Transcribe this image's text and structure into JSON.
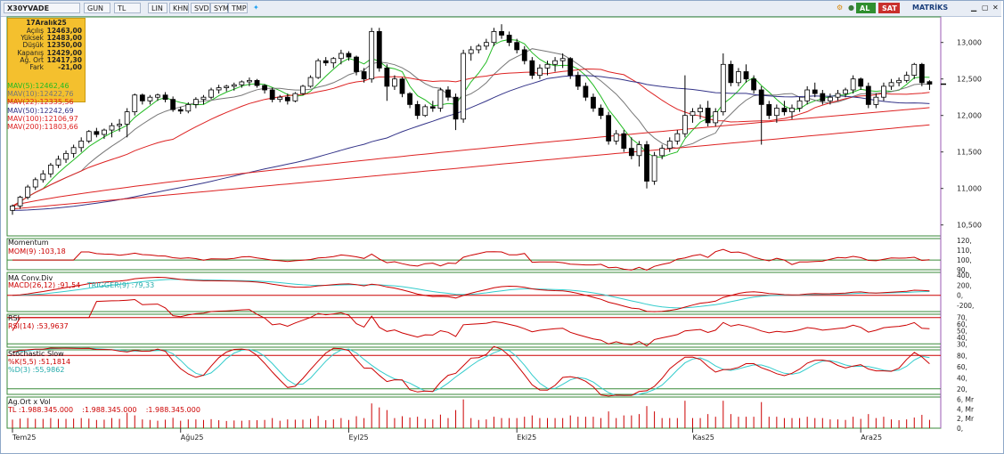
{
  "toolbar": {
    "symbol": "X30YVADE",
    "period": "GUN",
    "currency": "TL",
    "scale_lin": "LIN",
    "khn": "KHN",
    "svd": "SVD",
    "sym": "SYM",
    "tmp": "TMP",
    "buy": "AL",
    "sell": "SAT",
    "brand": "MATRİKS"
  },
  "info": {
    "date": "17Aralık25",
    "rows": [
      {
        "k": "Açılış",
        "v": "12463,00"
      },
      {
        "k": "Yüksek",
        "v": "12483,00"
      },
      {
        "k": "Düşük",
        "v": "12350,00"
      },
      {
        "k": "Kapanış",
        "v": "12429,00"
      },
      {
        "k": "Ağ. Ort",
        "v": "12417,30"
      },
      {
        "k": "Fark",
        "v": "-21,00"
      }
    ]
  },
  "ma_legend": [
    {
      "label": "MAV(5)",
      "value": ":12462,46",
      "color": "#22bb22"
    },
    {
      "label": "MAV(10)",
      "value": ":12422,76",
      "color": "#777777"
    },
    {
      "label": "MAV(22)",
      "value": ":12335,56",
      "color": "#dd2222"
    },
    {
      "label": "MAV(50)",
      "value": ":12242,69",
      "color": "#333388"
    },
    {
      "label": "MAV(100)",
      "value": ":12106,97",
      "color": "#dd2222"
    },
    {
      "label": "MAV(200)",
      "value": ":11803,66",
      "color": "#dd2222"
    }
  ],
  "panels": {
    "momentum": {
      "title": "Momentum",
      "line": "MOM(9)",
      "value": ":103,18"
    },
    "macd": {
      "title": "MA Conv.Div",
      "line": "MACD(26,12)",
      "value": ":91,54",
      "trigger": "TRIGGER(9)",
      "trigger_value": ":79,33"
    },
    "rsi": {
      "title": "RSI",
      "line": "RSI(14)",
      "value": ":53,9637"
    },
    "stoch": {
      "title": "Stochastic Slow",
      "k": "%K(5,5)",
      "k_value": ":51,1814",
      "d": "%D(3)",
      "d_value": ":55,9862"
    },
    "vol": {
      "title": "Ag.Ort x Vol",
      "unit": "TL",
      "value": ":1.988.345.000",
      "value2": ":1.988.345.000",
      "value3": ":1.988.345.000"
    }
  },
  "x_labels": [
    "Tem25",
    "Ağu25",
    "Eyl25",
    "Eki25",
    "Kas25",
    "Ara25"
  ],
  "colors": {
    "up": "#ffffff",
    "down": "#000000",
    "ma_fast": "#22bb22",
    "ma_mid": "#777777",
    "ma_red": "#dd2222",
    "ma_blue": "#333388",
    "signal": "#33cccc"
  },
  "chart_data": {
    "type": "candlestick",
    "y_axis": {
      "ticks": [
        10500,
        11000,
        11500,
        12000,
        12500,
        13000
      ],
      "range": [
        10350,
        13350
      ]
    },
    "candles": [
      [
        10700,
        10780,
        10640,
        10760
      ],
      [
        10760,
        10900,
        10720,
        10880
      ],
      [
        10880,
        11050,
        10850,
        11020
      ],
      [
        11020,
        11150,
        10980,
        11120
      ],
      [
        11120,
        11250,
        11080,
        11200
      ],
      [
        11200,
        11350,
        11150,
        11320
      ],
      [
        11320,
        11450,
        11280,
        11400
      ],
      [
        11400,
        11520,
        11350,
        11480
      ],
      [
        11480,
        11600,
        11420,
        11560
      ],
      [
        11560,
        11700,
        11500,
        11650
      ],
      [
        11650,
        11800,
        11620,
        11780
      ],
      [
        11780,
        11830,
        11700,
        11740
      ],
      [
        11740,
        11820,
        11680,
        11800
      ],
      [
        11800,
        11900,
        11700,
        11860
      ],
      [
        11860,
        11950,
        11780,
        11880
      ],
      [
        11880,
        12100,
        11700,
        12050
      ],
      [
        12050,
        12300,
        12000,
        12280
      ],
      [
        12280,
        12300,
        12150,
        12200
      ],
      [
        12200,
        12280,
        12150,
        12250
      ],
      [
        12250,
        12300,
        12200,
        12280
      ],
      [
        12280,
        12320,
        12180,
        12220
      ],
      [
        12220,
        12260,
        12050,
        12080
      ],
      [
        12080,
        12120,
        12020,
        12060
      ],
      [
        12060,
        12180,
        12030,
        12150
      ],
      [
        12150,
        12250,
        12100,
        12220
      ],
      [
        12220,
        12280,
        12150,
        12250
      ],
      [
        12250,
        12380,
        12220,
        12350
      ],
      [
        12350,
        12420,
        12300,
        12380
      ],
      [
        12380,
        12420,
        12330,
        12400
      ],
      [
        12400,
        12450,
        12340,
        12420
      ],
      [
        12420,
        12480,
        12380,
        12460
      ],
      [
        12460,
        12520,
        12400,
        12480
      ],
      [
        12480,
        12500,
        12380,
        12410
      ],
      [
        12410,
        12430,
        12300,
        12350
      ],
      [
        12350,
        12380,
        12180,
        12220
      ],
      [
        12220,
        12280,
        12180,
        12250
      ],
      [
        12250,
        12300,
        12150,
        12200
      ],
      [
        12200,
        12320,
        12180,
        12300
      ],
      [
        12300,
        12420,
        12280,
        12400
      ],
      [
        12400,
        12550,
        12380,
        12520
      ],
      [
        12520,
        12780,
        12500,
        12750
      ],
      [
        12750,
        12800,
        12680,
        12720
      ],
      [
        12720,
        12800,
        12650,
        12780
      ],
      [
        12780,
        12900,
        12700,
        12850
      ],
      [
        12850,
        12880,
        12750,
        12800
      ],
      [
        12800,
        12820,
        12550,
        12600
      ],
      [
        12600,
        12650,
        12450,
        12500
      ],
      [
        12500,
        13200,
        12450,
        13150
      ],
      [
        13150,
        13200,
        12600,
        12650
      ],
      [
        12650,
        12700,
        12200,
        12400
      ],
      [
        12400,
        12550,
        12350,
        12500
      ],
      [
        12500,
        12520,
        12250,
        12300
      ],
      [
        12300,
        12320,
        12100,
        12150
      ],
      [
        12150,
        12200,
        11950,
        12000
      ],
      [
        12000,
        12150,
        11980,
        12120
      ],
      [
        12120,
        12200,
        12050,
        12100
      ],
      [
        12100,
        12380,
        12050,
        12350
      ],
      [
        12350,
        12400,
        12200,
        12250
      ],
      [
        12250,
        12300,
        11800,
        11950
      ],
      [
        11950,
        12900,
        11900,
        12850
      ],
      [
        12850,
        12950,
        12750,
        12900
      ],
      [
        12900,
        12980,
        12850,
        12950
      ],
      [
        12950,
        13050,
        12900,
        13000
      ],
      [
        13000,
        13200,
        12950,
        13150
      ],
      [
        13150,
        13250,
        13050,
        13100
      ],
      [
        13100,
        13150,
        12950,
        13000
      ],
      [
        13000,
        13050,
        12850,
        12900
      ],
      [
        12900,
        12950,
        12700,
        12750
      ],
      [
        12750,
        12800,
        12500,
        12550
      ],
      [
        12550,
        12700,
        12500,
        12650
      ],
      [
        12650,
        12750,
        12550,
        12700
      ],
      [
        12700,
        12800,
        12600,
        12750
      ],
      [
        12750,
        12850,
        12650,
        12780
      ],
      [
        12780,
        12800,
        12500,
        12550
      ],
      [
        12550,
        12600,
        12350,
        12400
      ],
      [
        12400,
        12450,
        12200,
        12250
      ],
      [
        12250,
        12300,
        12050,
        12100
      ],
      [
        12100,
        12150,
        11950,
        12000
      ],
      [
        12000,
        12050,
        11600,
        11650
      ],
      [
        11650,
        11800,
        11600,
        11750
      ],
      [
        11750,
        11800,
        11500,
        11550
      ],
      [
        11550,
        11700,
        11400,
        11450
      ],
      [
        11450,
        11650,
        11300,
        11600
      ],
      [
        11600,
        11650,
        11000,
        11100
      ],
      [
        11100,
        11500,
        11050,
        11450
      ],
      [
        11450,
        11600,
        11400,
        11550
      ],
      [
        11550,
        11700,
        11500,
        11650
      ],
      [
        11650,
        11800,
        11600,
        11750
      ],
      [
        11750,
        12550,
        11700,
        12000
      ],
      [
        12000,
        12100,
        11900,
        12050
      ],
      [
        12050,
        12150,
        11950,
        12100
      ],
      [
        12100,
        12200,
        11850,
        11900
      ],
      [
        11900,
        12100,
        11850,
        12050
      ],
      [
        12050,
        12850,
        12000,
        12700
      ],
      [
        12700,
        12750,
        12400,
        12450
      ],
      [
        12450,
        12650,
        12400,
        12600
      ],
      [
        12600,
        12700,
        12450,
        12500
      ],
      [
        12500,
        12550,
        12300,
        12350
      ],
      [
        12350,
        12400,
        11600,
        12150
      ],
      [
        12150,
        12200,
        11950,
        12000
      ],
      [
        12000,
        12150,
        11900,
        12100
      ],
      [
        12100,
        12200,
        12000,
        12050
      ],
      [
        12050,
        12150,
        11950,
        12100
      ],
      [
        12100,
        12250,
        12050,
        12200
      ],
      [
        12200,
        12400,
        12150,
        12350
      ],
      [
        12350,
        12450,
        12250,
        12300
      ],
      [
        12300,
        12350,
        12150,
        12200
      ],
      [
        12200,
        12300,
        12150,
        12250
      ],
      [
        12250,
        12350,
        12200,
        12300
      ],
      [
        12300,
        12380,
        12250,
        12350
      ],
      [
        12350,
        12550,
        12300,
        12500
      ],
      [
        12500,
        12520,
        12350,
        12400
      ],
      [
        12400,
        12450,
        12100,
        12150
      ],
      [
        12150,
        12300,
        12100,
        12250
      ],
      [
        12250,
        12450,
        12200,
        12400
      ],
      [
        12400,
        12500,
        12350,
        12450
      ],
      [
        12450,
        12520,
        12400,
        12480
      ],
      [
        12480,
        12600,
        12450,
        12550
      ],
      [
        12550,
        12720,
        12500,
        12700
      ],
      [
        12700,
        12720,
        12400,
        12450
      ],
      [
        12463,
        12483,
        12350,
        12429
      ]
    ]
  }
}
